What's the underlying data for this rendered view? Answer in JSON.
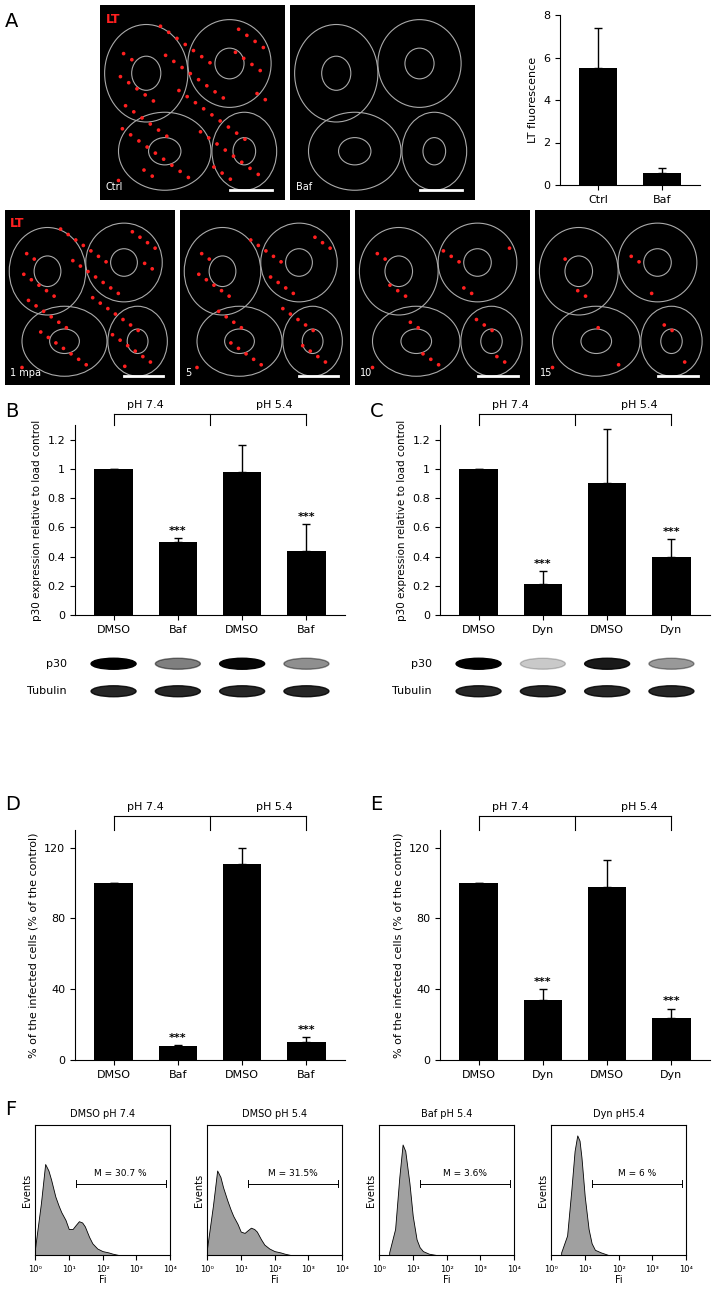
{
  "panel_labels": [
    "A",
    "B",
    "C",
    "D",
    "E",
    "F"
  ],
  "images": {
    "stain": "LT",
    "top": [
      "Ctrl",
      "Baf"
    ],
    "time_series": [
      "1 mpa",
      "5",
      "10",
      "15"
    ]
  },
  "chart_data": [
    {
      "type": "bar",
      "y_label": "LT fluorescence",
      "categories": [
        "Ctrl",
        "Baf"
      ],
      "values": [
        5.5,
        0.55
      ],
      "errors": [
        1.9,
        0.25
      ],
      "color": "#000000",
      "ylim": [
        0,
        8
      ],
      "yticks": [
        0,
        2,
        4,
        6,
        8
      ]
    },
    {
      "type": "bar",
      "y_label": "p30 expression relative to load control",
      "categories": [
        "DMSO",
        "Baf",
        "DMSO",
        "Baf"
      ],
      "values": [
        1.0,
        0.5,
        0.98,
        0.44
      ],
      "errors": [
        0,
        0.03,
        0.18,
        0.18
      ],
      "significance": [
        null,
        "***",
        null,
        "***"
      ],
      "groups": [
        "pH 7.4",
        "pH 5.4"
      ],
      "color": "#000000",
      "ylim": [
        0,
        1.3
      ],
      "yticks": [
        0,
        0.2,
        0.4,
        0.6,
        0.8,
        1,
        1.2
      ],
      "blot": {
        "rows": [
          "p30",
          "Tubulin"
        ]
      }
    },
    {
      "type": "bar",
      "y_label": "p30 expression relative to load control",
      "categories": [
        "DMSO",
        "Dyn",
        "DMSO",
        "Dyn"
      ],
      "values": [
        1.0,
        0.21,
        0.9,
        0.4
      ],
      "errors": [
        0,
        0.09,
        0.37,
        0.12
      ],
      "significance": [
        null,
        "***",
        null,
        "***"
      ],
      "groups": [
        "pH 7.4",
        "pH 5.4"
      ],
      "color": "#000000",
      "ylim": [
        0,
        1.3
      ],
      "yticks": [
        0,
        0.2,
        0.4,
        0.6,
        0.8,
        1,
        1.2
      ],
      "blot": {
        "rows": [
          "p30",
          "Tubulin"
        ]
      }
    },
    {
      "type": "bar",
      "y_label": "% of the infected cells (% of the control)",
      "categories": [
        "DMSO",
        "Baf",
        "DMSO",
        "Baf"
      ],
      "values": [
        100,
        8,
        111,
        10
      ],
      "errors": [
        0,
        0.5,
        9,
        3
      ],
      "significance": [
        null,
        "***",
        null,
        "***"
      ],
      "groups": [
        "pH 7.4",
        "pH 5.4"
      ],
      "color": "#000000",
      "ylim": [
        0,
        130
      ],
      "yticks": [
        0,
        40,
        80,
        120
      ]
    },
    {
      "type": "bar",
      "y_label": "% of the infected cells (% of the control)",
      "categories": [
        "DMSO",
        "Dyn",
        "DMSO",
        "Dyn"
      ],
      "values": [
        100,
        34,
        98,
        24
      ],
      "errors": [
        0,
        6,
        15,
        5
      ],
      "significance": [
        null,
        "***",
        null,
        "***"
      ],
      "groups": [
        "pH 7.4",
        "pH 5.4"
      ],
      "color": "#000000",
      "ylim": [
        0,
        130
      ],
      "yticks": [
        0,
        40,
        80,
        120
      ]
    },
    {
      "type": "area",
      "title": "DMSO pH 7.4",
      "x_label": "Fi",
      "y_label": "Events",
      "x": [
        1,
        1.5,
        2,
        2.5,
        3,
        4,
        5,
        6,
        8,
        10,
        13,
        16,
        20,
        25,
        30,
        40,
        50,
        70,
        100,
        150,
        200,
        300
      ],
      "values": [
        5,
        40,
        70,
        65,
        58,
        45,
        38,
        33,
        27,
        20,
        20,
        23,
        26,
        25,
        22,
        14,
        9,
        5,
        3,
        2,
        1,
        0
      ],
      "log": "x",
      "xlim": [
        1,
        10000
      ],
      "xticks": [
        {
          "value": 1,
          "label": "10⁰"
        },
        {
          "value": 10,
          "label": "10¹"
        },
        {
          "value": 100,
          "label": "10²"
        },
        {
          "value": 1000,
          "label": "10³"
        },
        {
          "value": 10000,
          "label": "10⁴"
        }
      ],
      "ylim": [
        0,
        100
      ],
      "tick_labels": "x",
      "annotation": "M = 30.7 %",
      "color": "#a0a0a0"
    },
    {
      "type": "area",
      "title": "DMSO pH 5.4",
      "x_label": "Fi",
      "y_label": "Events",
      "x": [
        1,
        1.5,
        2,
        2.5,
        3,
        4,
        5,
        6,
        8,
        10,
        13,
        16,
        20,
        25,
        30,
        40,
        50,
        70,
        100,
        150,
        200,
        300
      ],
      "values": [
        5,
        38,
        65,
        60,
        52,
        42,
        35,
        30,
        24,
        18,
        17,
        19,
        21,
        20,
        18,
        12,
        8,
        5,
        3,
        2,
        1,
        0
      ],
      "log": "x",
      "xlim": [
        1,
        10000
      ],
      "xticks": [
        {
          "value": 1,
          "label": "10⁰"
        },
        {
          "value": 10,
          "label": "10¹"
        },
        {
          "value": 100,
          "label": "10²"
        },
        {
          "value": 1000,
          "label": "10³"
        },
        {
          "value": 10000,
          "label": "10⁴"
        }
      ],
      "ylim": [
        0,
        100
      ],
      "tick_labels": "x",
      "annotation": "M = 31.5%",
      "color": "#a0a0a0"
    },
    {
      "type": "area",
      "title": "Baf pH 5.4",
      "x_label": "Fi",
      "y_label": "Events",
      "x": [
        2,
        3,
        4,
        5,
        6,
        8,
        10,
        13,
        16,
        20,
        30,
        50,
        100
      ],
      "values": [
        2,
        20,
        60,
        85,
        80,
        55,
        30,
        12,
        6,
        3,
        1,
        0,
        0
      ],
      "log": "x",
      "xlim": [
        1,
        10000
      ],
      "xticks": [
        {
          "value": 1,
          "label": "10⁰"
        },
        {
          "value": 10,
          "label": "10¹"
        },
        {
          "value": 100,
          "label": "10²"
        },
        {
          "value": 1000,
          "label": "10³"
        },
        {
          "value": 10000,
          "label": "10⁴"
        }
      ],
      "ylim": [
        0,
        100
      ],
      "tick_labels": "x",
      "annotation": "M = 3.6%",
      "color": "#a0a0a0"
    },
    {
      "type": "area",
      "title": "Dyn pH5.4",
      "x_label": "Fi",
      "y_label": "Events",
      "x": [
        2,
        3,
        4,
        5,
        6,
        7,
        8,
        10,
        13,
        16,
        20,
        30,
        50,
        100
      ],
      "values": [
        2,
        15,
        50,
        80,
        92,
        88,
        75,
        45,
        20,
        9,
        4,
        2,
        0,
        0
      ],
      "log": "x",
      "xlim": [
        1,
        10000
      ],
      "xticks": [
        {
          "value": 1,
          "label": "10⁰"
        },
        {
          "value": 10,
          "label": "10¹"
        },
        {
          "value": 100,
          "label": "10²"
        },
        {
          "value": 1000,
          "label": "10³"
        },
        {
          "value": 10000,
          "label": "10⁴"
        }
      ],
      "ylim": [
        0,
        100
      ],
      "tick_labels": "x",
      "annotation": "M = 6 %",
      "color": "#a0a0a0"
    }
  ]
}
